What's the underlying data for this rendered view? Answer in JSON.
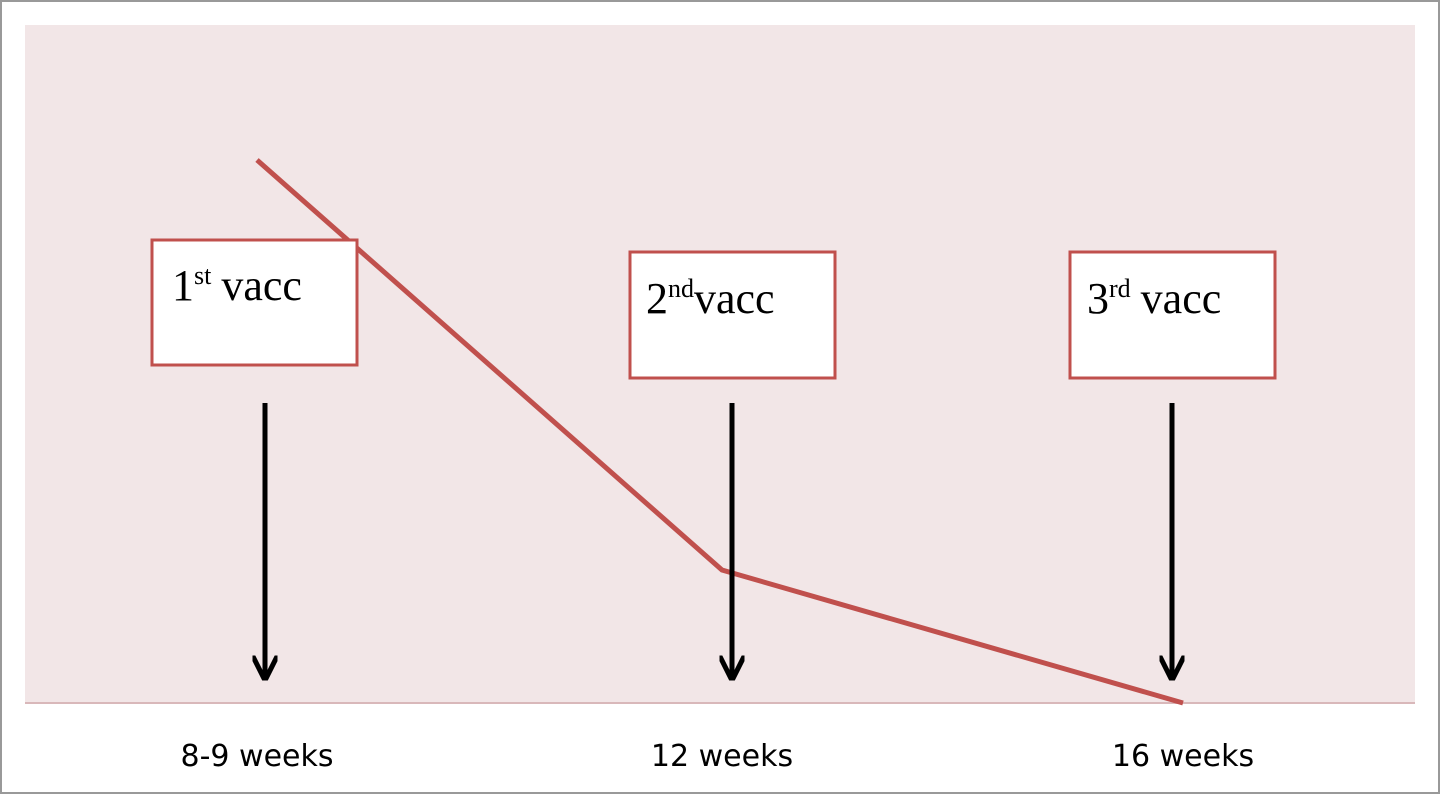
{
  "vaccinations": [
    {
      "number": "1",
      "suffix": "st",
      "label": "vacc",
      "time": "8-9 weeks"
    },
    {
      "number": "2",
      "suffix": "nd",
      "label": "vacc",
      "time": "12 weeks"
    },
    {
      "number": "3",
      "suffix": "rd",
      "label": "vacc",
      "time": "16 weeks"
    }
  ]
}
